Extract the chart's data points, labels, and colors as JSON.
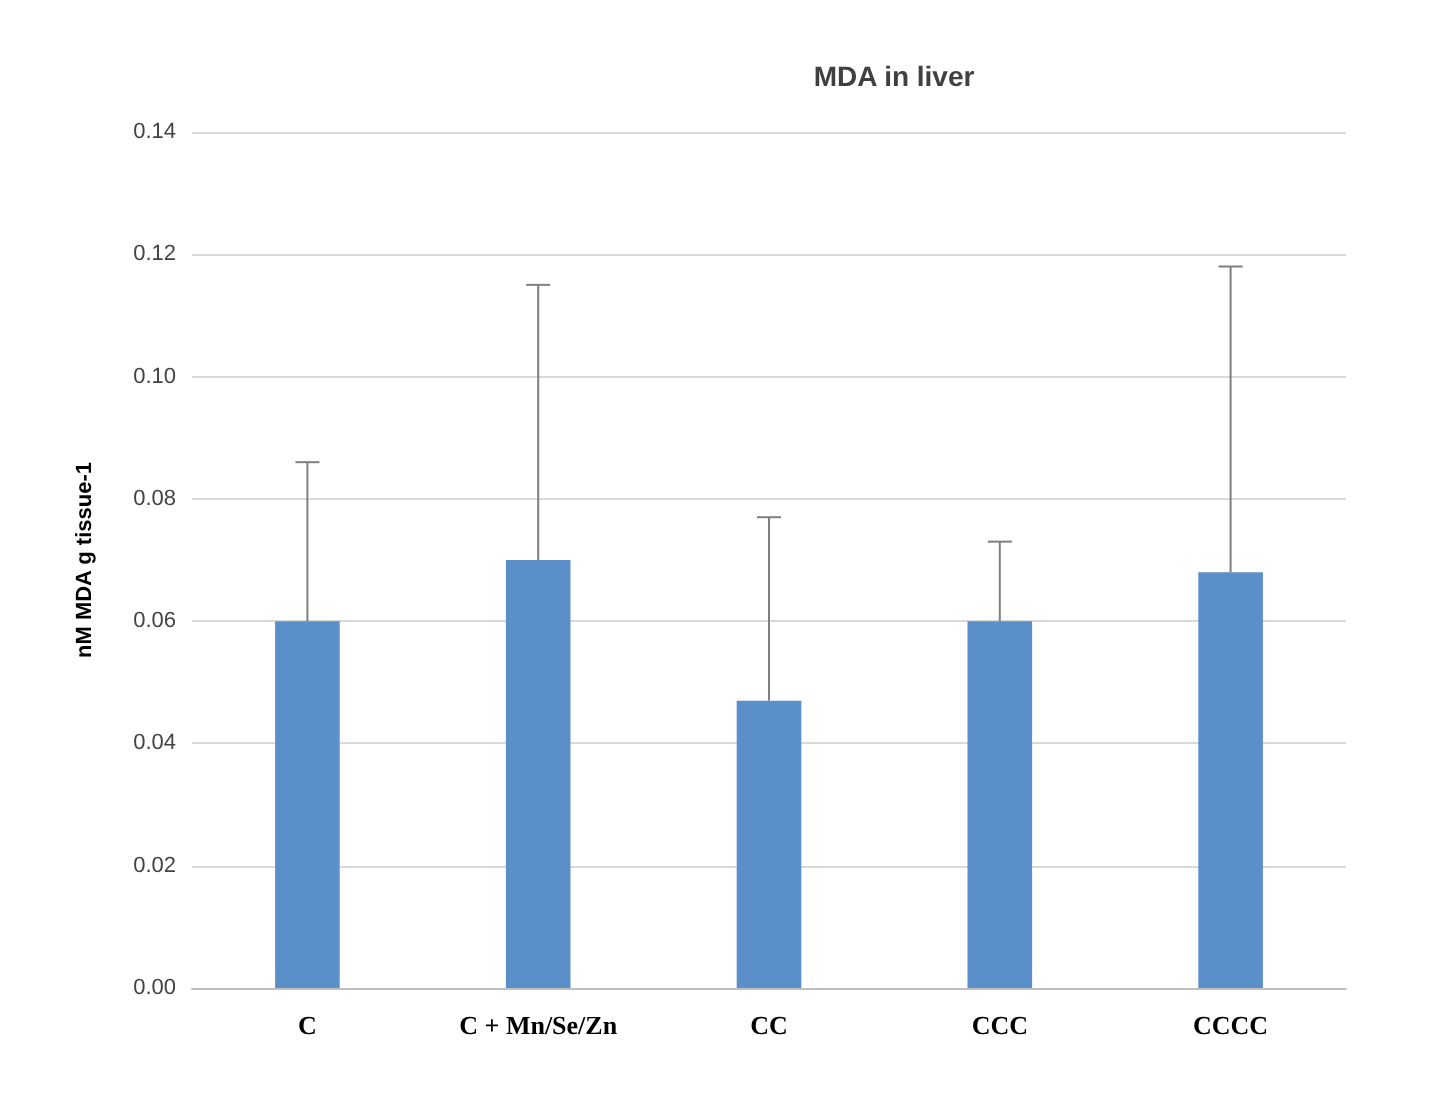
{
  "chart_data": {
    "type": "bar",
    "title": "MDA in liver",
    "ylabel": "nM MDA g tissue-1",
    "categories": [
      "C",
      "C + Mn/Se/Zn",
      "CC",
      "CCC",
      "CCCC"
    ],
    "values": [
      0.06,
      0.07,
      0.047,
      0.06,
      0.068
    ],
    "errors": [
      [
        0.06,
        0.086
      ],
      [
        0.07,
        0.115
      ],
      [
        0.047,
        0.077
      ],
      [
        0.06,
        0.073
      ],
      [
        0.068,
        0.118
      ]
    ],
    "color": "#5b8fc9",
    "ylim": [
      0,
      0.14
    ],
    "yticks": [
      {
        "value": 0,
        "label": "0.00"
      },
      {
        "value": 0.02,
        "label": "0.02"
      },
      {
        "value": 0.04,
        "label": "0.04"
      },
      {
        "value": 0.06,
        "label": "0.06"
      },
      {
        "value": 0.08,
        "label": "0.08"
      },
      {
        "value": 0.1,
        "label": "0.10"
      },
      {
        "value": 0.12,
        "label": "0.12"
      },
      {
        "value": 0.14,
        "label": "0.14"
      }
    ],
    "grid": true
  }
}
